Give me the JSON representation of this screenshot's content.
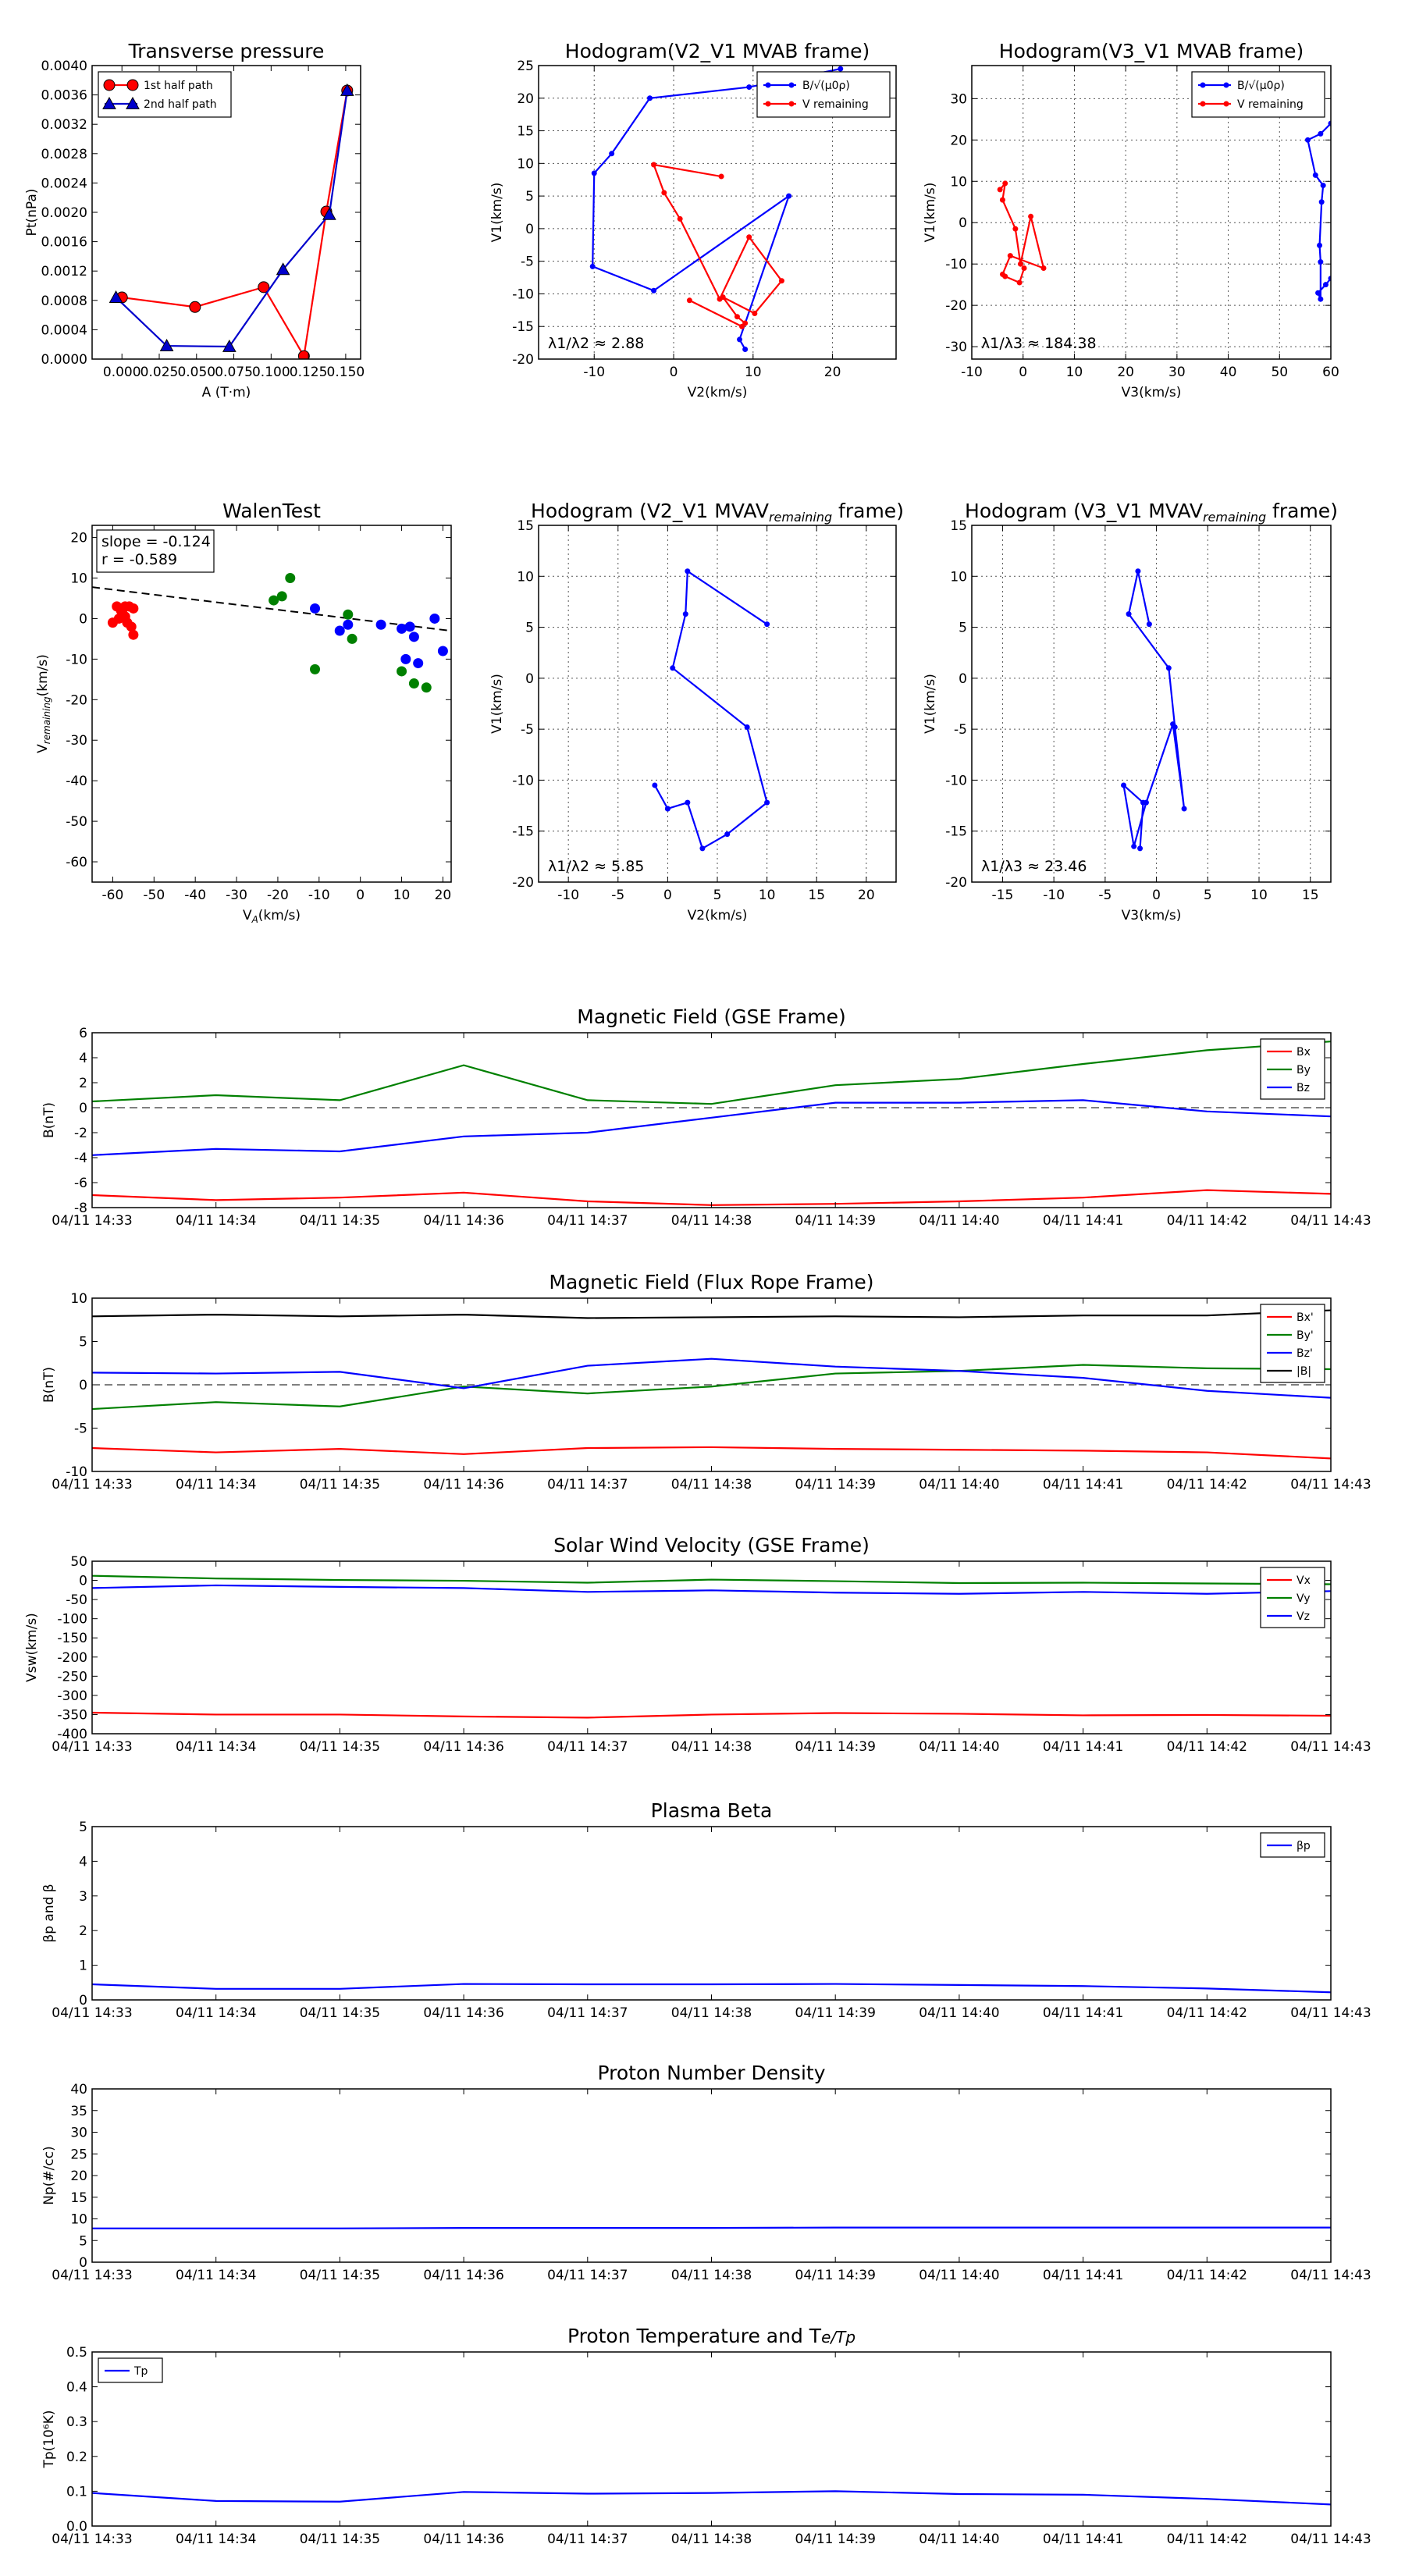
{
  "figure": {
    "background": "#ffffff"
  },
  "chart_data": [
    {
      "id": "transverse-pressure",
      "type": "line",
      "title": "Transverse pressure",
      "xlabel": "A (T·m)",
      "ylabel": "Pt(nPa)",
      "xlim": [
        -0.02,
        0.16
      ],
      "ylim": [
        0,
        0.004
      ],
      "xticks": [
        0.0,
        0.025,
        0.05,
        0.075,
        0.1,
        0.125,
        0.15
      ],
      "xtick_labels": [
        "0.000",
        "0.025",
        "0.050",
        "0.075",
        "0.100",
        "0.125",
        "0.150"
      ],
      "yticks": [
        0,
        0.0004,
        0.0008,
        0.0012,
        0.0016,
        0.002,
        0.0024,
        0.0028,
        0.0032,
        0.0036,
        0.004
      ],
      "ytick_labels": [
        "0.0000",
        "0.0004",
        "0.0008",
        "0.0012",
        "0.0016",
        "0.0020",
        "0.0024",
        "0.0028",
        "0.0032",
        "0.0036",
        "0.0040"
      ],
      "grid": false,
      "legend_loc": "upper-left",
      "series": [
        {
          "name": "1st half path",
          "color": "#ff0000",
          "marker": "circle",
          "x": [
            0.0,
            0.049,
            0.095,
            0.122,
            0.137,
            0.151
          ],
          "y": [
            0.00084,
            0.00071,
            0.00098,
            4e-05,
            0.00201,
            0.00366
          ]
        },
        {
          "name": "2nd half path",
          "color": "#0000cc",
          "marker": "triangle",
          "x": [
            0.151,
            0.139,
            0.108,
            0.072,
            0.03,
            -0.004
          ],
          "y": [
            0.00366,
            0.00197,
            0.00122,
            0.00017,
            0.00018,
            0.00084
          ]
        }
      ]
    },
    {
      "id": "hodogram-v2v1-mvab",
      "type": "line",
      "title": "Hodogram(V2_V1 MVAB frame)",
      "xlabel": "V2(km/s)",
      "ylabel": "V1(km/s)",
      "xlim": [
        -17,
        28
      ],
      "ylim": [
        -20,
        25
      ],
      "xticks": [
        -10,
        0,
        10,
        20
      ],
      "yticks": [
        -20,
        -15,
        -10,
        -5,
        0,
        5,
        10,
        15,
        20,
        25
      ],
      "grid": true,
      "legend_loc": "upper-right",
      "annotation": "λ1/λ2 ≈ 2.88",
      "series": [
        {
          "name": "B/√(μ0ρ)",
          "color": "#0000ff",
          "marker": "dot",
          "x": [
            9,
            8.3,
            14.5,
            -2.5,
            -10.2,
            -10,
            -7.8,
            -3,
            9.5,
            21
          ],
          "y": [
            -18.5,
            -17,
            5,
            -9.5,
            -5.8,
            8.5,
            11.5,
            20,
            21.7,
            24.5
          ]
        },
        {
          "name": "V remaining",
          "color": "#ff0000",
          "marker": "dot",
          "x": [
            6,
            -2.5,
            -1.2,
            0.8,
            5.8,
            9.5,
            13.6,
            10.2,
            6.2,
            8,
            9,
            8.6,
            2
          ],
          "y": [
            8,
            9.8,
            5.5,
            1.5,
            -10.8,
            -1.3,
            -8,
            -13,
            -10.5,
            -13.5,
            -14.5,
            -15,
            -11
          ]
        }
      ]
    },
    {
      "id": "hodogram-v3v1-mvab",
      "type": "line",
      "title": "Hodogram(V3_V1 MVAB frame)",
      "xlabel": "V3(km/s)",
      "ylabel": "V1(km/s)",
      "xlim": [
        -10,
        60
      ],
      "ylim": [
        -33,
        38
      ],
      "xticks": [
        -10,
        0,
        10,
        20,
        30,
        40,
        50,
        60
      ],
      "yticks": [
        -30,
        -20,
        -10,
        0,
        10,
        20,
        30
      ],
      "grid": true,
      "legend_loc": "upper-right",
      "annotation": "λ1/λ3 ≈ 184.38",
      "series": [
        {
          "name": "B/√(μ0ρ)",
          "color": "#0000ff",
          "marker": "dot",
          "x": [
            60,
            59,
            57.5,
            58,
            58,
            57.8,
            58.2,
            58.5,
            57,
            55.5,
            58,
            60
          ],
          "y": [
            -13.5,
            -15,
            -17,
            -18.5,
            -9.5,
            -5.5,
            5,
            9,
            11.5,
            20,
            21.5,
            24
          ]
        },
        {
          "name": "V remaining",
          "color": "#ff0000",
          "marker": "dot",
          "x": [
            -4.5,
            -3.5,
            -4,
            -1.5,
            -0.5,
            1.5,
            4,
            -2.5,
            -4,
            -3.5,
            -0.7,
            0.2
          ],
          "y": [
            8,
            9.5,
            5.5,
            -1.5,
            -10,
            1.5,
            -11,
            -8,
            -12.5,
            -13,
            -14.5,
            -11
          ]
        }
      ]
    },
    {
      "id": "walen-test",
      "type": "scatter",
      "title": "WalenTest",
      "xlabel": "V_A(km/s)",
      "ylabel": "V_remaining(km/s)",
      "xlim": [
        -65,
        22
      ],
      "ylim": [
        -65,
        23
      ],
      "xticks": [
        -60,
        -50,
        -40,
        -30,
        -20,
        -10,
        0,
        10,
        20
      ],
      "yticks": [
        -60,
        -50,
        -40,
        -30,
        -20,
        -10,
        0,
        10,
        20
      ],
      "grid": false,
      "annotation": [
        "slope = -0.124",
        "r = -0.589"
      ],
      "fit_line": {
        "slope": -0.124,
        "intercept": -0.3,
        "color": "#000000",
        "style": "dashed"
      },
      "series": [
        {
          "name": "",
          "color": "#ff0000",
          "x": [
            -59,
            -58,
            -57,
            -56,
            -55,
            -56.5,
            -57.5,
            -55.5,
            -58.5,
            -60,
            -55,
            -57
          ],
          "y": [
            3,
            2,
            3,
            3,
            2.5,
            -1,
            1,
            -2,
            0,
            -1,
            -4,
            0.5
          ]
        },
        {
          "name": "",
          "color": "#008000",
          "x": [
            -17,
            -21,
            -19,
            -11,
            -3,
            -2,
            10,
            13,
            16
          ],
          "y": [
            10,
            4.5,
            5.5,
            -12.5,
            1,
            -5,
            -13,
            -16,
            -17
          ]
        },
        {
          "name": "",
          "color": "#0000ff",
          "x": [
            -11,
            -5,
            -3,
            5,
            10,
            12,
            13,
            18,
            14,
            20,
            11
          ],
          "y": [
            2.5,
            -3,
            -1.5,
            -1.5,
            -2.5,
            -2,
            -4.5,
            0,
            -11,
            -8,
            -10
          ]
        }
      ]
    },
    {
      "id": "hodogram-v2v1-mvav",
      "type": "line",
      "title": "Hodogram (V2_V1 MVAV",
      "title_subscript": "remaining",
      "title_suffix": " frame)",
      "xlabel": "V2(km/s)",
      "ylabel": "V1(km/s)",
      "xlim": [
        -13,
        23
      ],
      "ylim": [
        -20,
        15
      ],
      "xticks": [
        -10,
        -5,
        0,
        5,
        10,
        15,
        20
      ],
      "yticks": [
        -20,
        -15,
        -10,
        -5,
        0,
        5,
        10,
        15
      ],
      "grid": true,
      "annotation": "λ1/λ2 ≈ 5.85",
      "series": [
        {
          "name": "",
          "color": "#0000ff",
          "marker": "dot",
          "x": [
            10,
            2,
            1.8,
            0.5,
            8,
            10,
            6,
            3.5,
            2,
            0,
            -1.3,
            0
          ],
          "y": [
            5.3,
            10.5,
            6.3,
            1,
            -4.8,
            -12.2,
            -15.3,
            -16.7,
            -12.2,
            -12.8,
            -10.5,
            -12.8
          ]
        }
      ]
    },
    {
      "id": "hodogram-v3v1-mvav",
      "type": "line",
      "title": "Hodogram (V3_V1 MVAV",
      "title_subscript": "remaining",
      "title_suffix": " frame)",
      "xlabel": "V3(km/s)",
      "ylabel": "V1(km/s)",
      "xlim": [
        -18,
        17
      ],
      "ylim": [
        -20,
        15
      ],
      "xticks": [
        -15,
        -10,
        -5,
        0,
        5,
        10,
        15
      ],
      "yticks": [
        -20,
        -15,
        -10,
        -5,
        0,
        5,
        10,
        15
      ],
      "grid": true,
      "annotation": "λ1/λ3 ≈ 23.46",
      "series": [
        {
          "name": "",
          "color": "#0000ff",
          "marker": "dot",
          "x": [
            -0.7,
            -1.8,
            -2.7,
            1.2,
            1.8,
            2.7,
            1.6,
            -1,
            -2.2,
            -3.2,
            -1.3,
            -1.6
          ],
          "y": [
            5.3,
            10.5,
            6.3,
            1,
            -4.8,
            -12.8,
            -4.5,
            -12.2,
            -16.5,
            -10.5,
            -12.2,
            -16.7
          ]
        }
      ]
    },
    {
      "id": "mag-field-gse",
      "type": "line",
      "title": "Magnetic Field (GSE Frame)",
      "xlabel": "",
      "ylabel": "B(nT)",
      "x": [
        "04/11 14:33",
        "04/11 14:34",
        "04/11 14:35",
        "04/11 14:36",
        "04/11 14:37",
        "04/11 14:38",
        "04/11 14:39",
        "04/11 14:40",
        "04/11 14:41",
        "04/11 14:42",
        "04/11 14:43"
      ],
      "ylim": [
        -8,
        6
      ],
      "yticks": [
        -8,
        -6,
        -4,
        -2,
        0,
        2,
        4,
        6
      ],
      "grid": false,
      "zero_line": true,
      "legend_loc": "upper-right",
      "series": [
        {
          "name": "Bx",
          "color": "#ff0000",
          "values": [
            -7,
            -7.4,
            -7.2,
            -6.8,
            -7.5,
            -7.8,
            -7.7,
            -7.5,
            -7.2,
            -6.6,
            -6.9
          ]
        },
        {
          "name": "By",
          "color": "#008000",
          "values": [
            0.5,
            1,
            0.6,
            3.4,
            0.6,
            0.3,
            1.8,
            2.3,
            3.5,
            4.6,
            5.3
          ]
        },
        {
          "name": "Bz",
          "color": "#0000ff",
          "values": [
            -3.8,
            -3.3,
            -3.5,
            -2.3,
            -2,
            -0.8,
            0.4,
            0.4,
            0.6,
            -0.3,
            -0.7
          ]
        }
      ]
    },
    {
      "id": "mag-field-flux-rope",
      "type": "line",
      "title": "Magnetic Field (Flux Rope Frame)",
      "xlabel": "",
      "ylabel": "B(nT)",
      "x": [
        "04/11 14:33",
        "04/11 14:34",
        "04/11 14:35",
        "04/11 14:36",
        "04/11 14:37",
        "04/11 14:38",
        "04/11 14:39",
        "04/11 14:40",
        "04/11 14:41",
        "04/11 14:42",
        "04/11 14:43"
      ],
      "ylim": [
        -10,
        10
      ],
      "yticks": [
        -10,
        -5,
        0,
        5,
        10
      ],
      "grid": false,
      "zero_line": true,
      "legend_loc": "upper-right",
      "series": [
        {
          "name": "Bx'",
          "color": "#ff0000",
          "values": [
            -7.3,
            -7.8,
            -7.4,
            -8,
            -7.3,
            -7.2,
            -7.4,
            -7.5,
            -7.6,
            -7.8,
            -8.5
          ]
        },
        {
          "name": "By'",
          "color": "#008000",
          "values": [
            -2.8,
            -2,
            -2.5,
            -0.2,
            -1,
            -0.2,
            1.3,
            1.6,
            2.3,
            1.9,
            1.8
          ]
        },
        {
          "name": "Bz'",
          "color": "#0000ff",
          "values": [
            1.4,
            1.3,
            1.5,
            -0.4,
            2.2,
            3,
            2.1,
            1.6,
            0.8,
            -0.7,
            -1.5
          ]
        },
        {
          "name": "|B|",
          "color": "#000000",
          "values": [
            7.9,
            8.1,
            7.9,
            8.1,
            7.7,
            7.8,
            7.9,
            7.8,
            8,
            8,
            8.6
          ]
        }
      ]
    },
    {
      "id": "solar-wind-velocity",
      "type": "line",
      "title": "Solar Wind Velocity (GSE Frame)",
      "xlabel": "",
      "ylabel": "Vsw(km/s)",
      "x": [
        "04/11 14:33",
        "04/11 14:34",
        "04/11 14:35",
        "04/11 14:36",
        "04/11 14:37",
        "04/11 14:38",
        "04/11 14:39",
        "04/11 14:40",
        "04/11 14:41",
        "04/11 14:42",
        "04/11 14:43"
      ],
      "ylim": [
        -400,
        50
      ],
      "yticks": [
        -400,
        -350,
        -300,
        -250,
        -200,
        -150,
        -100,
        -50,
        0,
        50
      ],
      "grid": false,
      "legend_loc": "upper-right",
      "series": [
        {
          "name": "Vx",
          "color": "#ff0000",
          "values": [
            -345,
            -350,
            -350,
            -355,
            -358,
            -350,
            -346,
            -348,
            -352,
            -351,
            -353
          ]
        },
        {
          "name": "Vy",
          "color": "#008000",
          "values": [
            12,
            5,
            1,
            -1,
            -6,
            2,
            -2,
            -7,
            -6,
            -8,
            -10
          ]
        },
        {
          "name": "Vz",
          "color": "#0000ff",
          "values": [
            -20,
            -13,
            -17,
            -20,
            -30,
            -26,
            -32,
            -35,
            -30,
            -35,
            -28
          ]
        }
      ]
    },
    {
      "id": "plasma-beta",
      "type": "line",
      "title": "Plasma Beta",
      "xlabel": "",
      "ylabel": "βp and β",
      "x": [
        "04/11 14:33",
        "04/11 14:34",
        "04/11 14:35",
        "04/11 14:36",
        "04/11 14:37",
        "04/11 14:38",
        "04/11 14:39",
        "04/11 14:40",
        "04/11 14:41",
        "04/11 14:42",
        "04/11 14:43"
      ],
      "ylim": [
        0,
        5
      ],
      "yticks": [
        0,
        1,
        2,
        3,
        4,
        5
      ],
      "grid": false,
      "legend_loc": "upper-right",
      "series": [
        {
          "name": "βp",
          "color": "#0000ff",
          "values": [
            0.45,
            0.32,
            0.32,
            0.46,
            0.45,
            0.45,
            0.46,
            0.43,
            0.4,
            0.33,
            0.22
          ]
        }
      ]
    },
    {
      "id": "proton-density",
      "type": "line",
      "title": "Proton Number Density",
      "xlabel": "",
      "ylabel": "Np(#/cc)",
      "x": [
        "04/11 14:33",
        "04/11 14:34",
        "04/11 14:35",
        "04/11 14:36",
        "04/11 14:37",
        "04/11 14:38",
        "04/11 14:39",
        "04/11 14:40",
        "04/11 14:41",
        "04/11 14:42",
        "04/11 14:43"
      ],
      "ylim": [
        0,
        40
      ],
      "yticks": [
        0,
        5,
        10,
        15,
        20,
        25,
        30,
        35,
        40
      ],
      "grid": false,
      "series": [
        {
          "name": "",
          "color": "#0000ff",
          "values": [
            7.8,
            7.8,
            7.8,
            7.9,
            7.9,
            7.9,
            8,
            8,
            8,
            8,
            8
          ]
        }
      ]
    },
    {
      "id": "proton-temperature",
      "type": "line",
      "title": "Proton Temperature and T",
      "title_math": "e/Tp",
      "xlabel": "",
      "ylabel": "Tp(10⁶K)",
      "x": [
        "04/11 14:33",
        "04/11 14:34",
        "04/11 14:35",
        "04/11 14:36",
        "04/11 14:37",
        "04/11 14:38",
        "04/11 14:39",
        "04/11 14:40",
        "04/11 14:41",
        "04/11 14:42",
        "04/11 14:43"
      ],
      "ylim": [
        0,
        0.5
      ],
      "yticks": [
        0,
        0.1,
        0.2,
        0.3,
        0.4,
        0.5
      ],
      "ytick_labels": [
        "0.0",
        "0.1",
        "0.2",
        "0.3",
        "0.4",
        "0.5"
      ],
      "grid": false,
      "legend_loc": "upper-left",
      "series": [
        {
          "name": "Tp",
          "color": "#0000ff",
          "values": [
            0.095,
            0.072,
            0.07,
            0.098,
            0.093,
            0.095,
            0.1,
            0.092,
            0.09,
            0.078,
            0.062
          ]
        }
      ]
    }
  ]
}
